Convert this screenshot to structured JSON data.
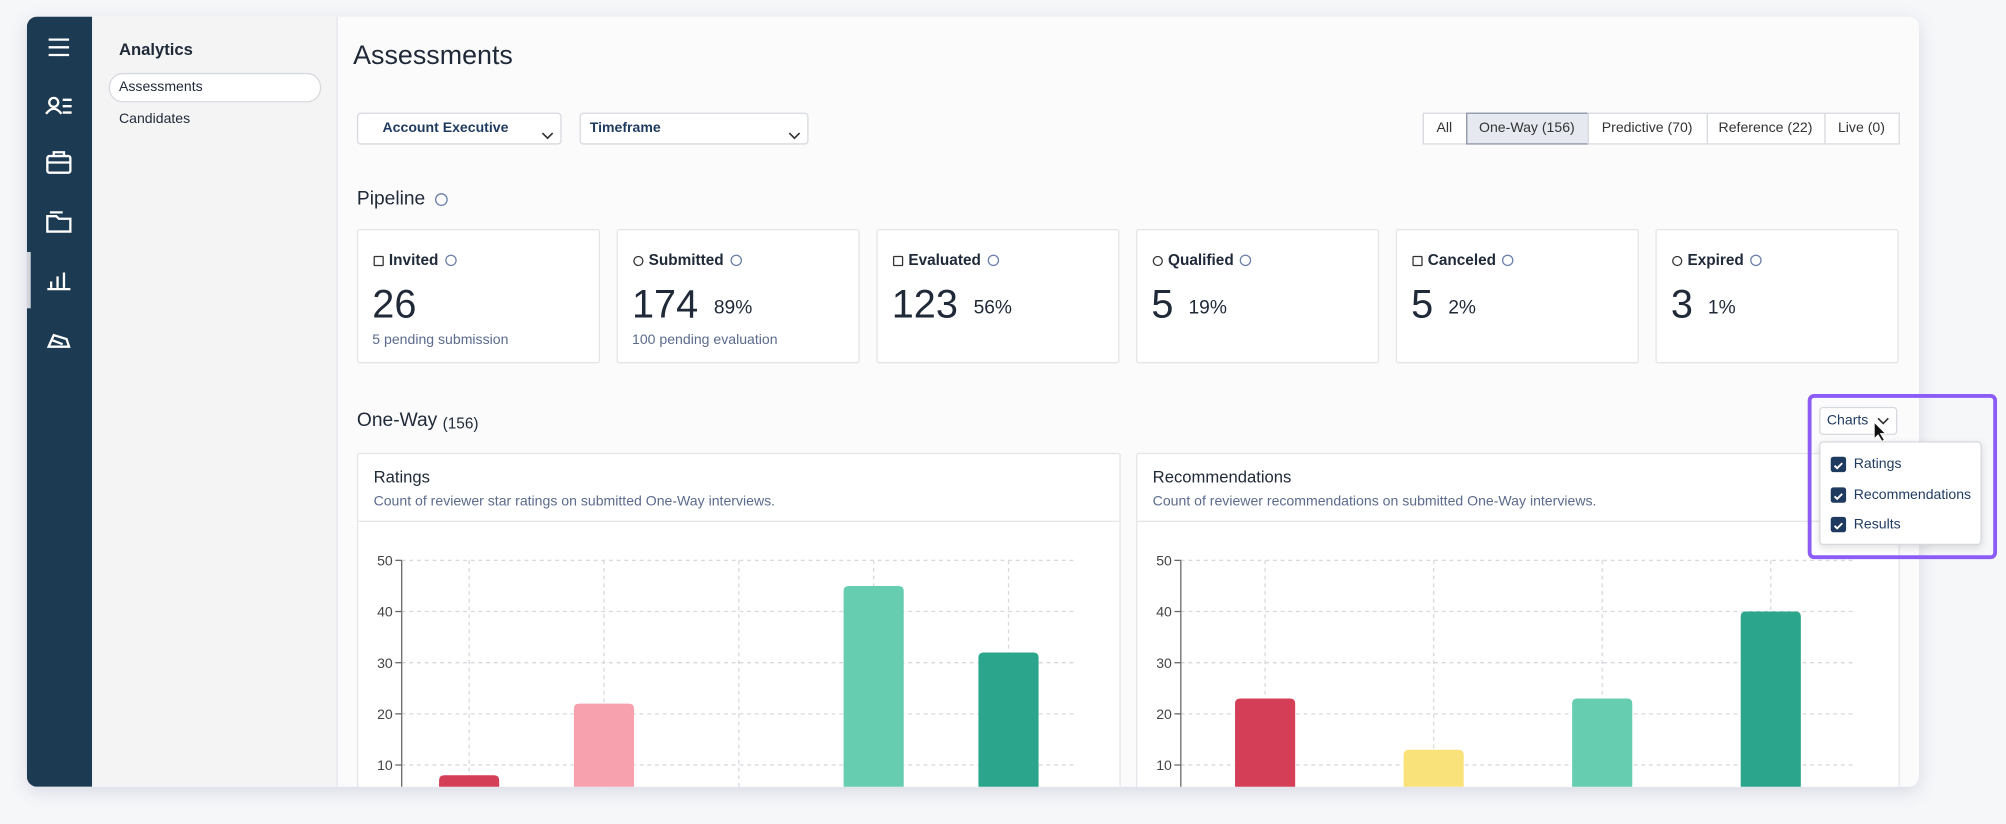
{
  "sidebar": {
    "title": "Analytics",
    "items": [
      "Assessments",
      "Candidates"
    ]
  },
  "header": {
    "title": "Assessments"
  },
  "filters": [
    "Account Executive",
    "Timeframe"
  ],
  "tabs": [
    "All",
    "One-Way (156)",
    "Predictive (70)",
    "Reference (22)",
    "Live (0)"
  ],
  "pipeline": {
    "title": "Pipeline",
    "cards": [
      {
        "label": "Invited",
        "value": 26,
        "note": "5 pending submission"
      },
      {
        "label": "Submitted",
        "value": 174,
        "percent": "89%",
        "note": "100 pending evaluation"
      },
      {
        "label": "Evaluated",
        "value": 123,
        "percent": "56%"
      },
      {
        "label": "Qualified",
        "value": 5,
        "percent": "19%"
      },
      {
        "label": "Canceled",
        "value": 5,
        "percent": "2%"
      },
      {
        "label": "Expired",
        "value": 3,
        "percent": "1%"
      }
    ]
  },
  "section": {
    "title": "One-Way",
    "count": "(156)"
  },
  "charts_menu": {
    "button": "Charts",
    "options": [
      "Ratings",
      "Recommendations",
      "Results"
    ]
  },
  "charts": [
    {
      "type": "bar",
      "title": "Ratings",
      "subtitle": "Count of reviewer star ratings on submitted One-Way interviews.",
      "categories": [
        null,
        null,
        null,
        null,
        null
      ],
      "values": [
        8,
        22,
        0,
        45,
        32
      ],
      "colors": [
        "#d43f57",
        "#f7a1ae",
        "#f9e27a",
        "#66cdb0",
        "#2ca58d"
      ],
      "ylim": [
        0,
        50
      ],
      "yticks": [
        10,
        20,
        30,
        40,
        50
      ],
      "grid": true
    },
    {
      "type": "bar",
      "title": "Recommendations",
      "subtitle": "Count of reviewer recommendations on submitted One-Way interviews.",
      "categories": [
        null,
        null,
        null,
        null
      ],
      "values": [
        23,
        13,
        23,
        40
      ],
      "colors": [
        "#d43f57",
        "#f9e27a",
        "#66cdb0",
        "#2ca58d"
      ],
      "ylim": [
        0,
        50
      ],
      "yticks": [
        10,
        20,
        30,
        40,
        50
      ],
      "grid": true
    }
  ]
}
